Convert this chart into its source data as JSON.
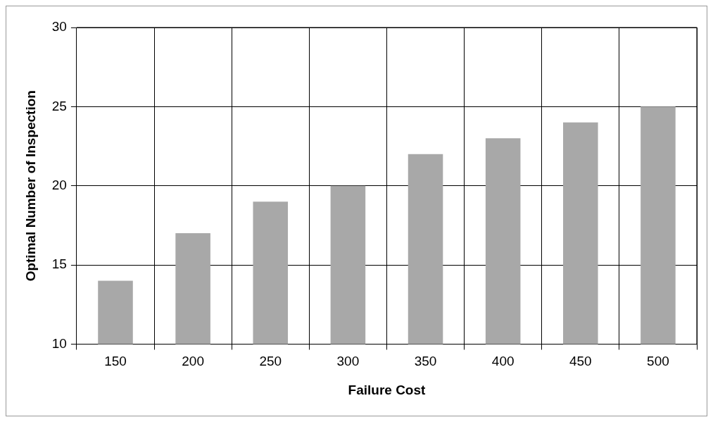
{
  "chart_data": {
    "type": "bar",
    "xlabel": "Failure Cost",
    "ylabel": "Optimal Number of Inspection",
    "categories": [
      "150",
      "200",
      "250",
      "300",
      "350",
      "400",
      "450",
      "500"
    ],
    "values": [
      14,
      17,
      19,
      20,
      22,
      23,
      24,
      25
    ],
    "color": "#a8a8a8",
    "ylim": [
      10,
      30
    ],
    "yticks": [
      10,
      15,
      20,
      25,
      30
    ],
    "grid": true,
    "legend": false
  }
}
